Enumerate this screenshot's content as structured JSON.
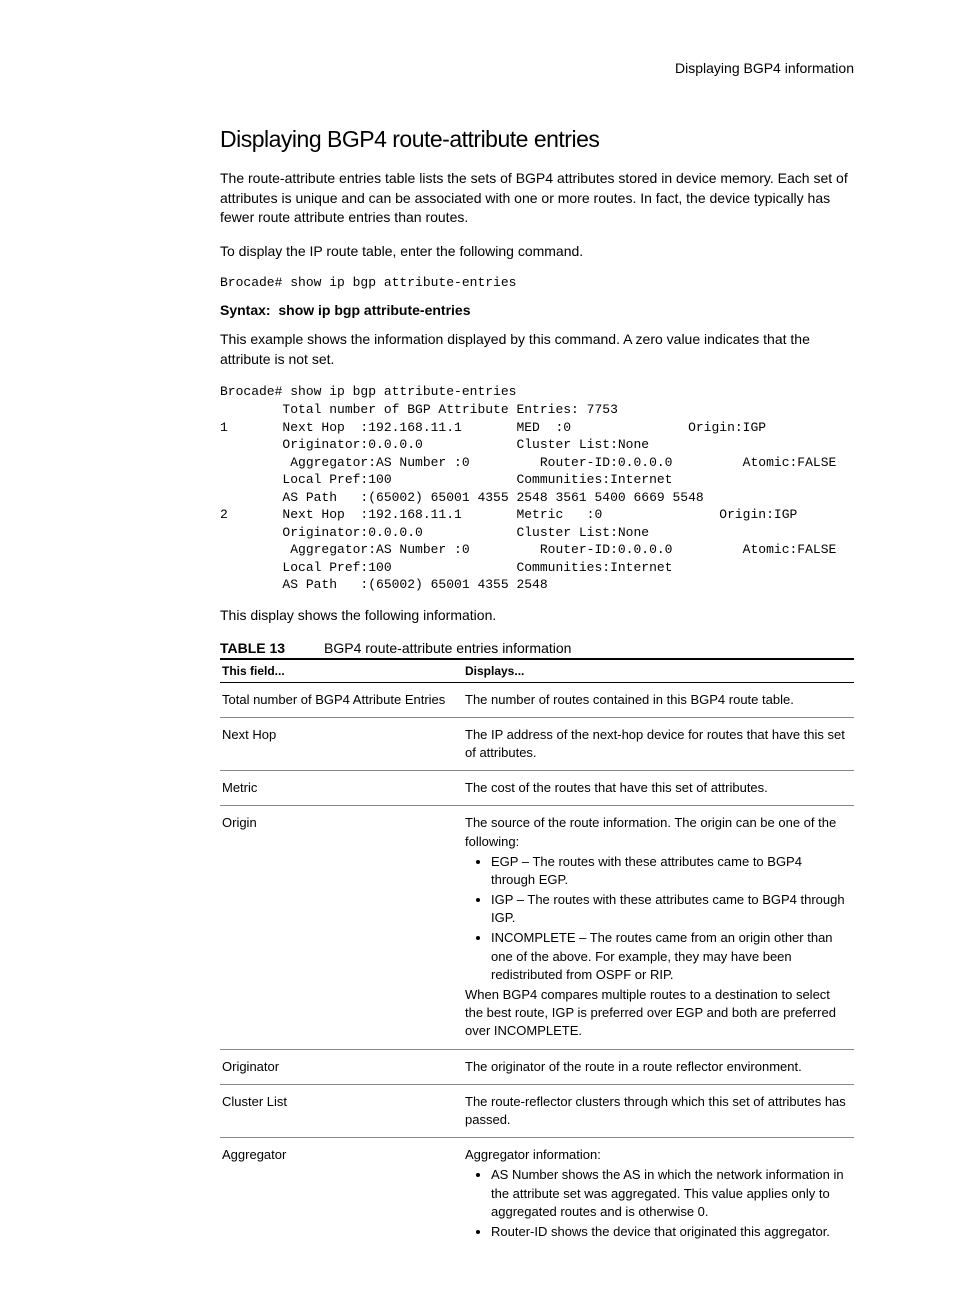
{
  "header": {
    "section_title": "Displaying BGP4 information"
  },
  "title": "Displaying BGP4 route-attribute entries",
  "paragraphs": {
    "intro": "The route-attribute entries table lists the sets of BGP4 attributes stored in device memory. Each set of attributes is unique and can be associated with one or more routes. In fact, the device typically has fewer route attribute entries than routes.",
    "command_lead": "To display the IP route table, enter the following command.",
    "command": "Brocade# show ip bgp attribute-entries",
    "syntax_prefix": "Syntax:",
    "syntax_cmd": "show ip bgp attribute-entries",
    "example_intro": "This example shows the information displayed by this command. A zero value indicates that the attribute is not set.",
    "display_info": "This display shows the following information."
  },
  "terminal": "Brocade# show ip bgp attribute-entries\n        Total number of BGP Attribute Entries: 7753\n1       Next Hop  :192.168.11.1       MED  :0               Origin:IGP\n        Originator:0.0.0.0            Cluster List:None\n         Aggregator:AS Number :0         Router-ID:0.0.0.0         Atomic:FALSE\n        Local Pref:100                Communities:Internet\n        AS Path   :(65002) 65001 4355 2548 3561 5400 6669 5548\n2       Next Hop  :192.168.11.1       Metric   :0               Origin:IGP\n        Originator:0.0.0.0            Cluster List:None\n         Aggregator:AS Number :0         Router-ID:0.0.0.0         Atomic:FALSE\n        Local Pref:100                Communities:Internet\n        AS Path   :(65002) 65001 4355 2548",
  "table": {
    "label": "TABLE 13",
    "caption": "BGP4 route-attribute entries information",
    "columns": [
      "This field...",
      "Displays..."
    ],
    "rows": [
      {
        "field": "Total number of BGP4 Attribute Entries",
        "display": "The number of routes contained in this BGP4 route table."
      },
      {
        "field": "Next Hop",
        "display": "The IP address of the next-hop device for routes that have this set of attributes."
      },
      {
        "field": "Metric",
        "display": "The cost of the routes that have this set of attributes."
      },
      {
        "field": "Origin",
        "display_intro": "The source of the route information. The origin can be one of the following:",
        "bullets": [
          "EGP – The routes with these attributes came to BGP4 through EGP.",
          "IGP – The routes with these attributes came to BGP4 through IGP.",
          "INCOMPLETE – The routes came from an origin other than one of the above. For example, they may have been redistributed from OSPF or RIP."
        ],
        "display_after": "When BGP4 compares multiple routes to a destination to select the best route, IGP is preferred over EGP and both are preferred over INCOMPLETE."
      },
      {
        "field": "Originator",
        "display": "The originator of the route in a route reflector environment."
      },
      {
        "field": "Cluster List",
        "display": "The route-reflector clusters through which this set of attributes has passed."
      },
      {
        "field": "Aggregator",
        "display_intro": "Aggregator information:",
        "bullets": [
          "AS Number shows the AS in which the network information in the attribute set was aggregated. This value applies only to aggregated routes and is otherwise 0.",
          "Router-ID shows the device that originated this aggregator."
        ]
      }
    ]
  },
  "styles": {
    "body_bg": "#ffffff",
    "text_color": "#000000",
    "border_color": "#000000",
    "row_border_color": "#888888",
    "h1_fontsize": 23,
    "body_fontsize": 14,
    "code_fontsize": 13,
    "table_fontsize": 13
  }
}
